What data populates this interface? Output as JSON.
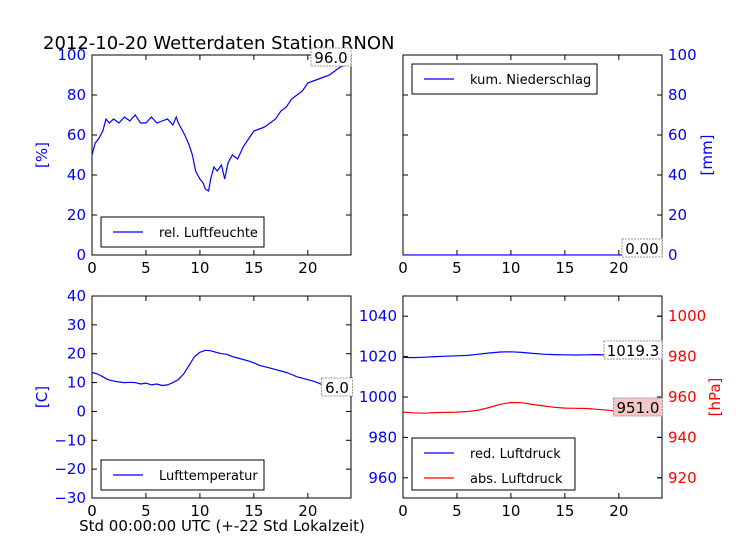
{
  "title": "2012-10-20 Wetterdaten Station RNON",
  "xlabel": "Std 00:00:00 UTC (+-22 Std Lokalzeit)",
  "colors": {
    "primary": "#0000ff",
    "secondary": "#ff0000"
  },
  "chart_data": [
    {
      "id": "humidity",
      "type": "line",
      "ylabel": "[%]",
      "xlim": [
        0,
        24
      ],
      "ylim": [
        0,
        100
      ],
      "xticks": [
        "0",
        "5",
        "10",
        "15",
        "20"
      ],
      "yticks": [
        "0",
        "20",
        "40",
        "60",
        "80",
        "100"
      ],
      "legend": {
        "position": "lower-left"
      },
      "annotation": "96.0",
      "series": [
        {
          "name": "rel. Luftfeuchte",
          "color": "#0000ff",
          "x": [
            0,
            0.3,
            0.6,
            1.0,
            1.3,
            1.6,
            2.0,
            2.5,
            3.0,
            3.5,
            4.0,
            4.5,
            5.0,
            5.5,
            6.0,
            6.5,
            7.0,
            7.5,
            7.8,
            8.0,
            8.3,
            8.6,
            9.0,
            9.3,
            9.6,
            10.0,
            10.3,
            10.5,
            10.8,
            11.0,
            11.3,
            11.6,
            12.0,
            12.3,
            12.6,
            13.0,
            13.5,
            14.0,
            14.5,
            15.0,
            15.5,
            16.0,
            16.5,
            17.0,
            17.5,
            18.0,
            18.5,
            19.0,
            19.5,
            20.0,
            20.5,
            21.0,
            21.5,
            22.0,
            22.5,
            23.0,
            23.5,
            24.0
          ],
          "y": [
            50,
            56,
            58,
            62,
            68,
            66,
            68,
            66,
            69,
            67,
            70,
            66,
            66,
            69,
            66,
            67,
            68,
            65,
            69,
            66,
            63,
            60,
            55,
            50,
            42,
            38,
            36,
            33,
            32,
            38,
            44,
            42,
            45,
            38,
            46,
            50,
            48,
            54,
            58,
            62,
            63,
            64,
            66,
            68,
            72,
            74,
            78,
            80,
            82,
            86,
            87,
            88,
            89,
            90,
            92,
            94,
            95,
            96
          ]
        }
      ]
    },
    {
      "id": "precipitation",
      "type": "line",
      "ylabel": "[mm]",
      "xlim": [
        0,
        24
      ],
      "ylim": [
        0,
        100
      ],
      "xticks": [
        "0",
        "5",
        "10",
        "15",
        "20"
      ],
      "yticks": [
        "0",
        "20",
        "40",
        "60",
        "80",
        "100"
      ],
      "legend": {
        "position": "upper-left"
      },
      "annotation": "0.00",
      "series": [
        {
          "name": "kum. Niederschlag",
          "color": "#0000ff",
          "x": [
            0,
            24
          ],
          "y": [
            0,
            0
          ]
        }
      ]
    },
    {
      "id": "temperature",
      "type": "line",
      "ylabel": "[C]",
      "xlim": [
        0,
        24
      ],
      "ylim": [
        -30,
        40
      ],
      "xticks": [
        "0",
        "5",
        "10",
        "15",
        "20"
      ],
      "yticks": [
        "−30",
        "−20",
        "−10",
        "0",
        "10",
        "20",
        "30",
        "40"
      ],
      "legend": {
        "position": "lower-left"
      },
      "annotation": "6.0",
      "series": [
        {
          "name": "Lufttemperatur",
          "color": "#0000ff",
          "x": [
            0,
            0.5,
            1.0,
            1.5,
            2.0,
            2.5,
            3.0,
            3.5,
            4.0,
            4.5,
            5.0,
            5.5,
            6.0,
            6.5,
            7.0,
            7.5,
            8.0,
            8.5,
            9.0,
            9.5,
            10.0,
            10.5,
            11.0,
            11.5,
            12.0,
            12.5,
            13.0,
            13.5,
            14.0,
            14.5,
            15.0,
            15.5,
            16.0,
            16.5,
            17.0,
            17.5,
            18.0,
            18.5,
            19.0,
            19.5,
            20.0,
            20.5,
            21.0,
            21.5,
            22.0,
            22.5,
            23.0,
            23.5,
            24.0
          ],
          "y": [
            13.5,
            13,
            12,
            11,
            10.5,
            10.2,
            10,
            10.1,
            10,
            9.5,
            9.8,
            9.2,
            9.5,
            9,
            9.2,
            10,
            11,
            13,
            16,
            19,
            20.5,
            21.2,
            21,
            20.5,
            20,
            19.8,
            19,
            18.5,
            18,
            17.5,
            16.8,
            16,
            15.5,
            15,
            14.5,
            14,
            13.5,
            12.8,
            12,
            11.5,
            11,
            10.5,
            9.8,
            9,
            8.5,
            7.8,
            7,
            6.5,
            6
          ]
        }
      ]
    },
    {
      "id": "pressure",
      "type": "line",
      "ylabel": "[hPa]",
      "xlim": [
        0,
        24
      ],
      "ylim": [
        950,
        1050
      ],
      "ylim_right": [
        910,
        1010
      ],
      "xticks": [
        "0",
        "5",
        "10",
        "15",
        "20"
      ],
      "yticks": [
        "960",
        "980",
        "1000",
        "1020",
        "1040"
      ],
      "yticks_right": [
        "920",
        "940",
        "960",
        "980",
        "1000"
      ],
      "legend": {
        "position": "lower-left"
      },
      "annotation_top": "1019.3",
      "annotation_bottom": "951.0",
      "series": [
        {
          "name": "red. Luftdruck",
          "color": "#0000ff",
          "axis": "left",
          "x": [
            0,
            1,
            2,
            3,
            4,
            5,
            6,
            7,
            8,
            9,
            10,
            11,
            12,
            13,
            14,
            15,
            16,
            17,
            18,
            19,
            20,
            21,
            22,
            23,
            24
          ],
          "y": [
            1019.6,
            1019.5,
            1019.7,
            1020,
            1020.2,
            1020.4,
            1020.6,
            1021.2,
            1021.8,
            1022.3,
            1022.4,
            1022.1,
            1021.6,
            1021.2,
            1021,
            1020.9,
            1020.8,
            1020.9,
            1021,
            1020.8,
            1020.6,
            1020.2,
            1019.9,
            1019.6,
            1019.3
          ]
        },
        {
          "name": "abs. Luftdruck",
          "color": "#ff0000",
          "axis": "right",
          "x": [
            0,
            1,
            2,
            3,
            4,
            5,
            6,
            7,
            8,
            9,
            10,
            11,
            12,
            13,
            14,
            15,
            16,
            17,
            18,
            19,
            20,
            21,
            22,
            23,
            24
          ],
          "y": [
            952.5,
            952.2,
            952,
            952.3,
            952.4,
            952.5,
            952.8,
            953.5,
            954.8,
            956.4,
            957.3,
            957.2,
            956.3,
            955.6,
            954.9,
            954.5,
            954.4,
            954.3,
            953.9,
            953.4,
            953,
            952.5,
            951.9,
            951.5,
            951
          ]
        }
      ]
    }
  ]
}
